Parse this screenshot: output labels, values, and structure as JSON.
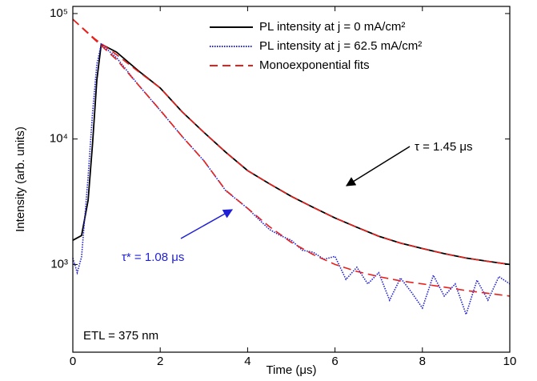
{
  "chart_data": {
    "type": "line",
    "x_label": "Time (μs)",
    "y_label": "Intensity (arb. units)",
    "xlim": [
      0,
      10
    ],
    "xticks": [
      0,
      2,
      4,
      6,
      8,
      10
    ],
    "ylim": [
      200,
      114000
    ],
    "yticks": [
      {
        "value": 1000,
        "label": "10³"
      },
      {
        "value": 10000,
        "label": "10⁴"
      },
      {
        "value": 100000,
        "label": "10⁵"
      }
    ],
    "log_y": true,
    "legend": "top-right",
    "series": [
      {
        "name": "PL intensity at j = 0 mA/cm²",
        "color": "#000000",
        "style": "solid",
        "x": [
          0,
          0.2,
          0.35,
          0.45,
          0.55,
          0.65,
          1,
          1.5,
          2,
          2.5,
          3,
          3.5,
          4,
          4.5,
          5,
          5.5,
          6,
          6.5,
          7,
          7.5,
          8,
          8.5,
          9,
          9.5,
          10
        ],
        "values": [
          1560,
          1700,
          3250,
          9100,
          29500,
          57000,
          49300,
          35000,
          25500,
          16500,
          11300,
          7850,
          5600,
          4400,
          3490,
          2850,
          2350,
          1980,
          1680,
          1480,
          1340,
          1220,
          1125,
          1060,
          1000
        ]
      },
      {
        "name": "PL intensity at j = 62.5 mA/cm²",
        "color": "#1f1fd6",
        "style": "dotted",
        "x": [
          0,
          0.1,
          0.2,
          0.35,
          0.45,
          0.55,
          0.65,
          1,
          1.5,
          2,
          2.5,
          3,
          3.5,
          4,
          4.25,
          4.5,
          4.75,
          5,
          5.25,
          5.5,
          5.75,
          6,
          6.25,
          6.5,
          6.75,
          7,
          7.25,
          7.5,
          7.75,
          8,
          8.25,
          8.5,
          8.75,
          9,
          9.25,
          9.5,
          9.75,
          10
        ],
        "values": [
          1125,
          860,
          1150,
          5000,
          16000,
          39500,
          57000,
          44500,
          27000,
          16900,
          10500,
          6700,
          3870,
          2800,
          2300,
          1900,
          1700,
          1560,
          1300,
          1250,
          1100,
          1160,
          760,
          950,
          700,
          860,
          520,
          780,
          600,
          450,
          820,
          560,
          700,
          400,
          750,
          520,
          800,
          700
        ]
      },
      {
        "name": "Monoexponential fits",
        "color": "#e8201c",
        "style": "dashed",
        "x": [
          0,
          0.5,
          1,
          1.5,
          2,
          2.5,
          3,
          3.5,
          4,
          4.5,
          5,
          5.5,
          6,
          6.5,
          7,
          7.5,
          8,
          8.5,
          9,
          9.5,
          10
        ],
        "values": [
          90000,
          63000,
          47000,
          34500,
          25500,
          16500,
          11300,
          7850,
          5600,
          4400,
          3490,
          2850,
          2350,
          1980,
          1680,
          1480,
          1340,
          1220,
          1125,
          1060,
          1000
        ]
      },
      {
        "color": "#e8201c",
        "style": "dashed",
        "x": [
          0,
          0.5,
          1,
          1.5,
          2,
          2.5,
          3,
          3.5,
          4,
          4.5,
          5,
          5.5,
          6,
          6.5,
          7,
          7.5,
          8,
          8.5,
          9,
          9.5,
          10
        ],
        "values": [
          90000,
          62000,
          43000,
          27000,
          17000,
          10500,
          6700,
          3900,
          2800,
          2000,
          1500,
          1200,
          1000,
          880,
          800,
          740,
          700,
          660,
          620,
          590,
          560
        ]
      }
    ],
    "annotations": [
      "τ = 1.45 μs",
      "τ* = 1.08 μs",
      "ETL = 375 nm"
    ]
  }
}
